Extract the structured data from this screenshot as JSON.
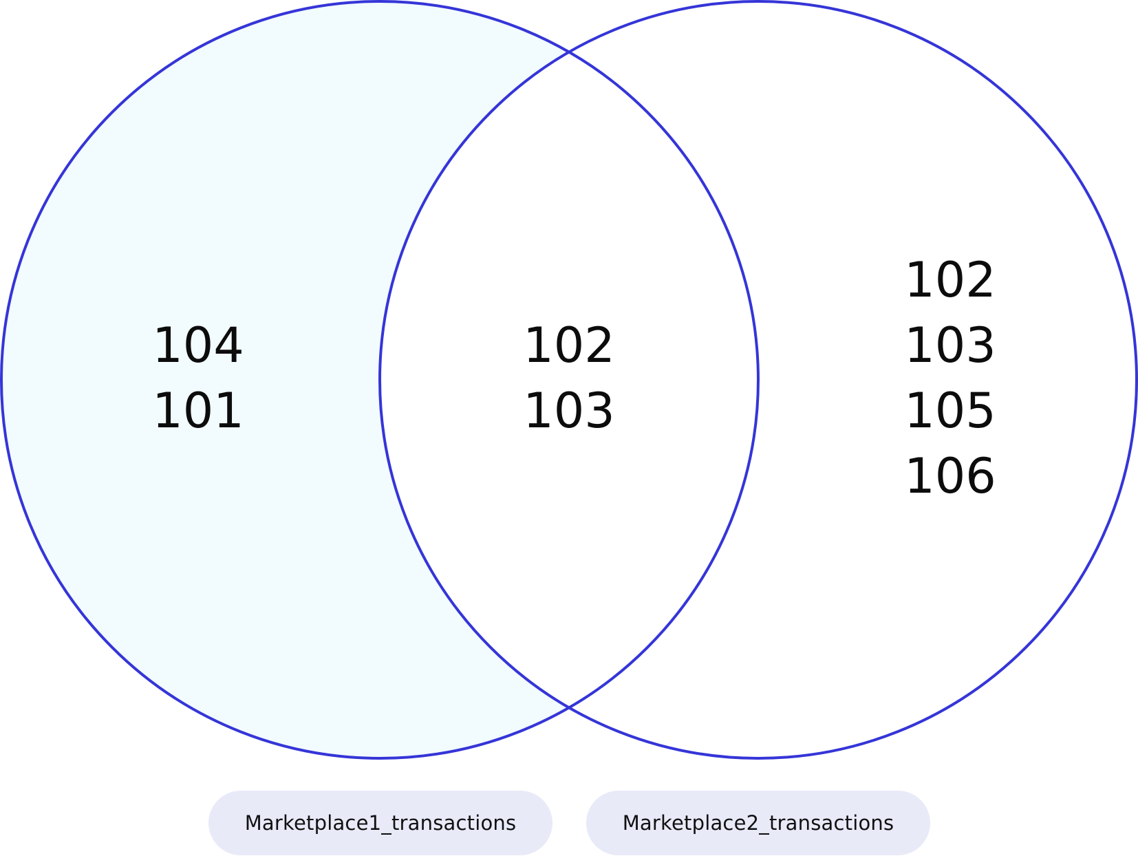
{
  "diagram": {
    "type": "venn",
    "colors": {
      "outline": "#3535d8",
      "highlight_fill": "#f2fbfd",
      "label_background": "#e8eaf8",
      "text": "#0c0c0c"
    },
    "highlighted_region": "left_only",
    "regions": {
      "left_only": [
        "104",
        "101"
      ],
      "intersection": [
        "102",
        "103"
      ],
      "right_only": [
        "102",
        "103",
        "105",
        "106"
      ]
    },
    "labels": {
      "left": "Marketplace1_transactions",
      "right": "Marketplace2_transactions"
    }
  }
}
